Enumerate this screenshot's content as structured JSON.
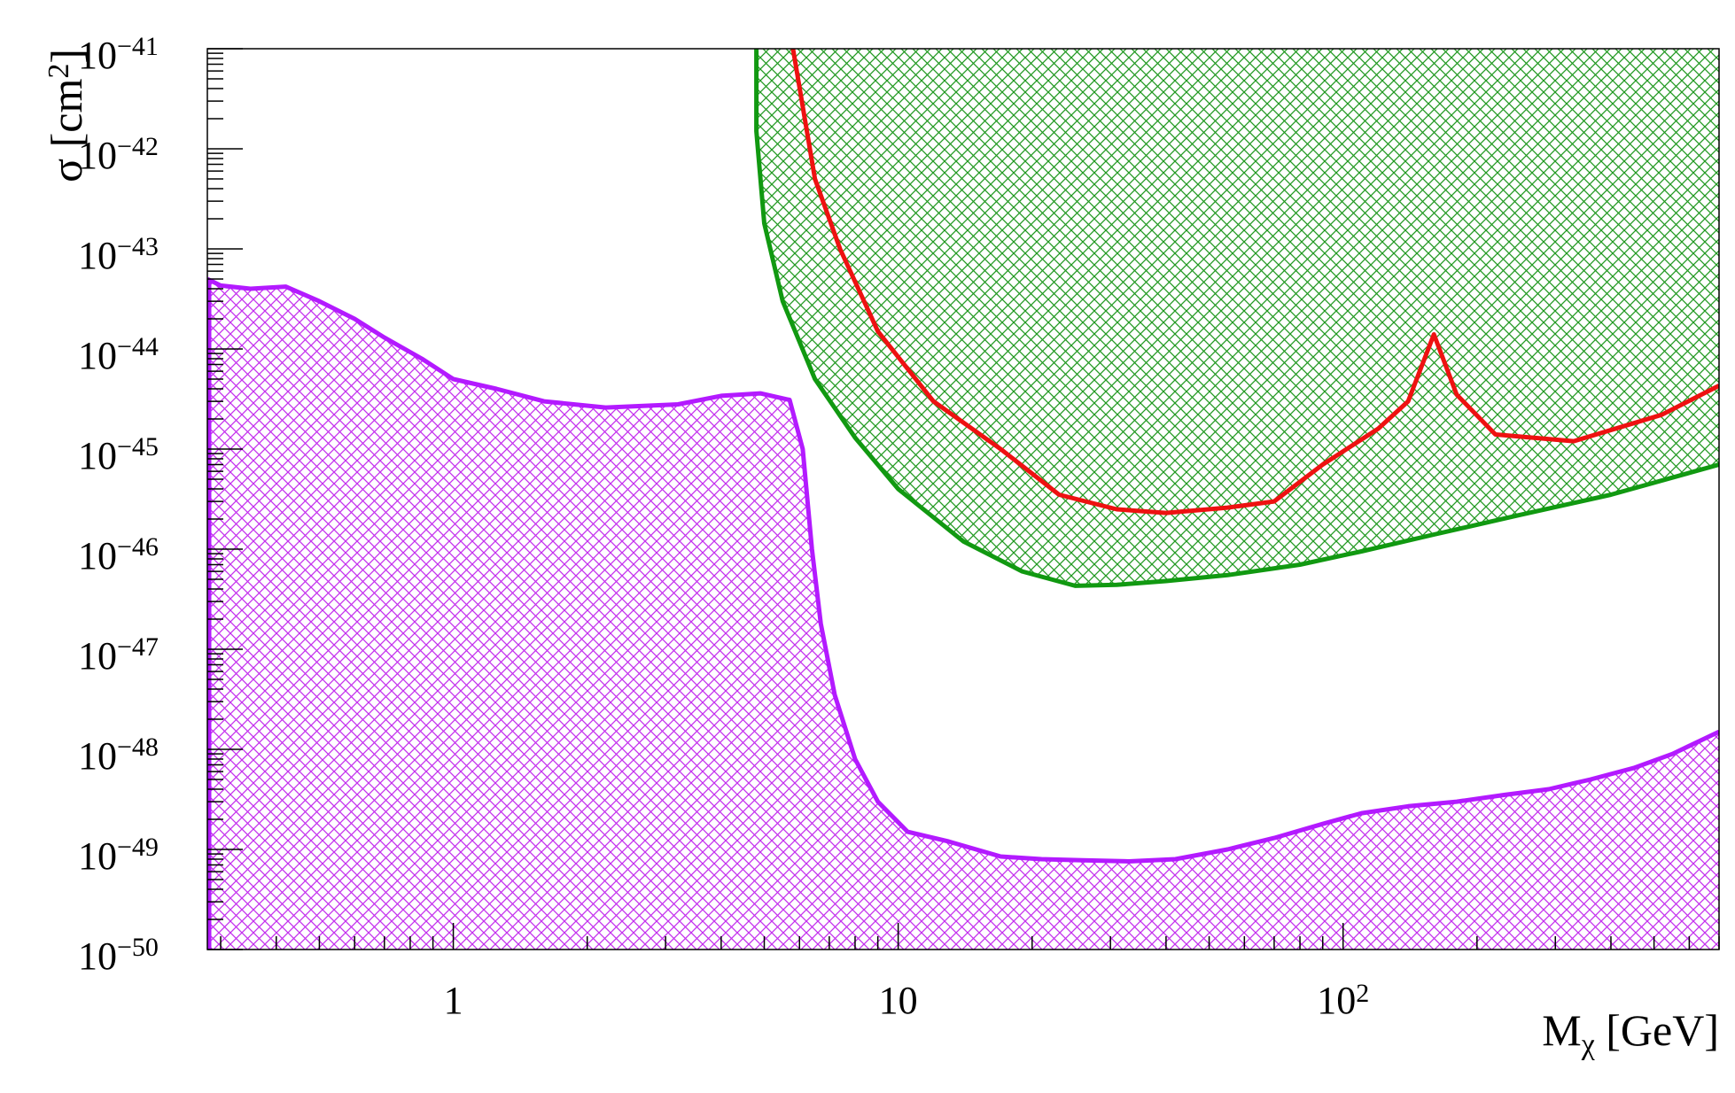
{
  "chart_data": {
    "type": "area",
    "xscale": "log",
    "yscale": "log",
    "xlim": [
      0.28,
      700
    ],
    "ylim": [
      1e-50,
      1e-41
    ],
    "grid": false,
    "xlabel": {
      "main": "M",
      "sub": "χ",
      "unit": " [GeV]"
    },
    "ylabel": {
      "main": "σ [cm",
      "sup": "2",
      "close": "]"
    },
    "x_ticks": [
      {
        "value": 1,
        "base": "1",
        "exp": ""
      },
      {
        "value": 10,
        "base": "10",
        "exp": ""
      },
      {
        "value": 100,
        "base": "10",
        "exp": "2"
      }
    ],
    "y_ticks": [
      {
        "value": 1e-50,
        "base": "10",
        "exp": "−50"
      },
      {
        "value": 1e-49,
        "base": "10",
        "exp": "−49"
      },
      {
        "value": 1e-48,
        "base": "10",
        "exp": "−48"
      },
      {
        "value": 1e-47,
        "base": "10",
        "exp": "−47"
      },
      {
        "value": 1e-46,
        "base": "10",
        "exp": "−46"
      },
      {
        "value": 1e-45,
        "base": "10",
        "exp": "−45"
      },
      {
        "value": 1e-44,
        "base": "10",
        "exp": "−44"
      },
      {
        "value": 1e-43,
        "base": "10",
        "exp": "−43"
      },
      {
        "value": 1e-42,
        "base": "10",
        "exp": "−42"
      },
      {
        "value": 1e-41,
        "base": "10",
        "exp": "−41"
      }
    ],
    "series": [
      {
        "color": "#b31aff",
        "fill": "hatch",
        "x": [
          0.28,
          0.3,
          0.35,
          0.42,
          0.5,
          0.6,
          0.7,
          0.85,
          1.0,
          1.25,
          1.6,
          2.2,
          3.2,
          4.0,
          4.9,
          5.7,
          6.1,
          6.4,
          6.7,
          7.2,
          8.0,
          9.0,
          10.5,
          13,
          17,
          21,
          26,
          33,
          42,
          55,
          70,
          90,
          110,
          140,
          180,
          230,
          290,
          360,
          450,
          550,
          700
        ],
        "y": [
          5e-44,
          4.3e-44,
          4e-44,
          4.2e-44,
          3e-44,
          2e-44,
          1.3e-44,
          8e-45,
          5e-45,
          4e-45,
          3e-45,
          2.6e-45,
          2.8e-45,
          3.4e-45,
          3.6e-45,
          3.1e-45,
          1e-45,
          1e-46,
          1.8e-47,
          3.5e-48,
          8e-49,
          3e-49,
          1.5e-49,
          1.2e-49,
          8.5e-50,
          8e-50,
          7.8e-50,
          7.6e-50,
          8e-50,
          1e-49,
          1.3e-49,
          1.8e-49,
          2.3e-49,
          2.7e-49,
          3e-49,
          3.5e-49,
          4e-49,
          5e-49,
          6.5e-49,
          9e-49,
          1.5e-48
        ]
      },
      {
        "color": "#119911",
        "fill": "hatch",
        "x": [
          4.8,
          4.8,
          5.0,
          5.5,
          6.5,
          8.0,
          10,
          14,
          19,
          25,
          31,
          40,
          55,
          80,
          110,
          160,
          250,
          400,
          700
        ],
        "y": [
          1e-41,
          1.5e-42,
          1.8e-43,
          3e-44,
          5e-45,
          1.3e-45,
          4e-46,
          1.2e-46,
          6e-47,
          4.3e-47,
          4.4e-47,
          4.8e-47,
          5.5e-47,
          7e-47,
          9.5e-47,
          1.4e-46,
          2.2e-46,
          3.5e-46,
          7e-46
        ]
      },
      {
        "color": "#ee1111",
        "fill": "none",
        "x": [
          5.8,
          6.5,
          7.4,
          9,
          12,
          17,
          23,
          31,
          40,
          55,
          70,
          90,
          120,
          140,
          160,
          180,
          220,
          330,
          520,
          700
        ],
        "y": [
          1e-41,
          5e-43,
          1e-43,
          1.5e-44,
          3e-45,
          1e-45,
          3.5e-46,
          2.5e-46,
          2.3e-46,
          2.6e-46,
          3e-46,
          7e-46,
          1.6e-45,
          3e-45,
          1.4e-44,
          3.5e-45,
          1.4e-45,
          1.2e-45,
          2.2e-45,
          4.3e-45
        ]
      }
    ]
  }
}
